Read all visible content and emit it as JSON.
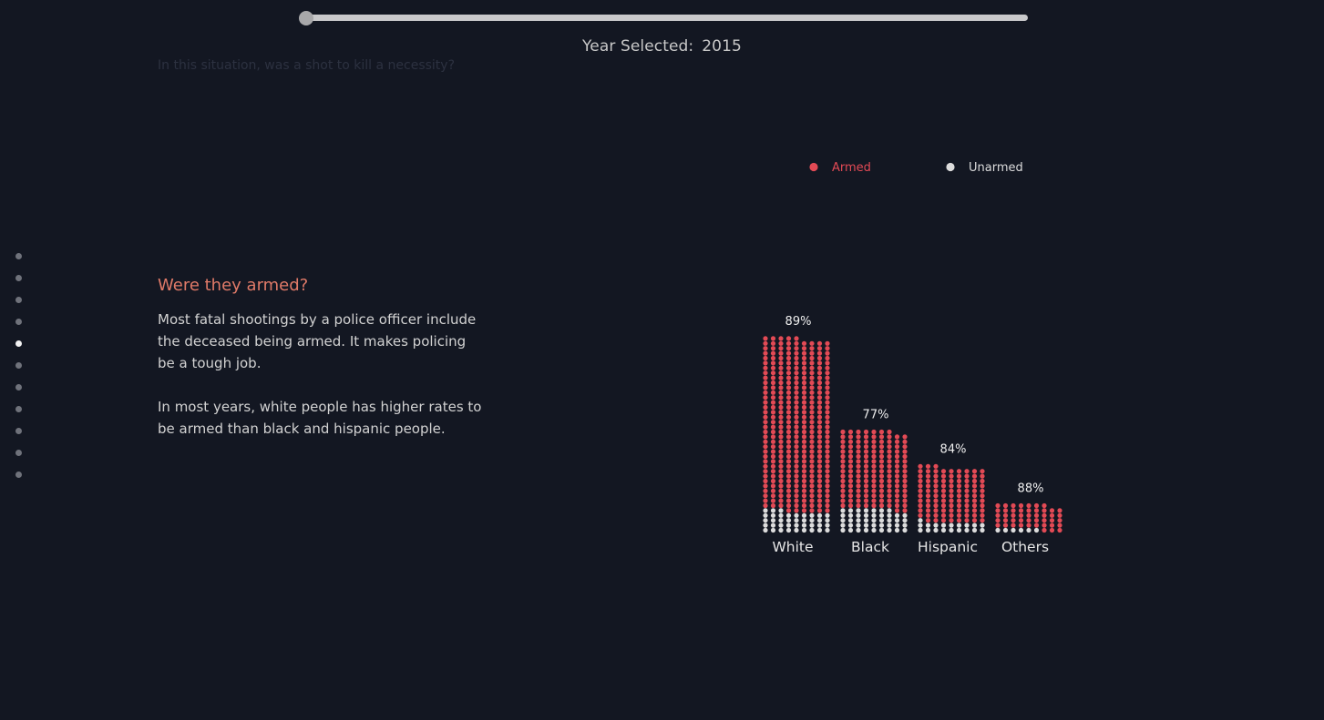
{
  "slider": {
    "year_label_prefix": "Year Selected:",
    "year": "2015"
  },
  "faded_question": "In this situation, was a shot to kill a necessity?",
  "steps": {
    "count": 11,
    "active_index": 4
  },
  "narrative": {
    "heading": "Were they armed?",
    "paragraph1": "Most fatal shootings by a police officer include the deceased being armed. It makes policing be a tough job.",
    "paragraph2": "In most years, white people has higher rates to be armed than black and hispanic people."
  },
  "colors": {
    "background": "#131722",
    "armed": "#e24a55",
    "unarmed": "#dcdcdc",
    "heading": "#e07a68"
  },
  "chart_data": {
    "type": "bar",
    "categories": [
      "White",
      "Black",
      "Hispanic",
      "Others"
    ],
    "series": [
      {
        "name": "Armed",
        "values": [
          89,
          77,
          84,
          88
        ]
      },
      {
        "name": "Unarmed",
        "values": [
          11,
          23,
          16,
          12
        ]
      }
    ],
    "dot_counts": [
      {
        "armed": 317,
        "unarmed": 39
      },
      {
        "armed": 144,
        "unarmed": 43
      },
      {
        "armed": 101,
        "unarmed": 19
      },
      {
        "armed": 46,
        "unarmed": 6
      }
    ],
    "percent_labels": [
      "89%",
      "77%",
      "84%",
      "88%"
    ],
    "legend": [
      {
        "label": "Armed",
        "color": "#e24a55"
      },
      {
        "label": "Unarmed",
        "color": "#dcdcdc"
      }
    ],
    "legend_position": "top-right",
    "xlabel": "",
    "ylabel": "",
    "grid": false
  }
}
